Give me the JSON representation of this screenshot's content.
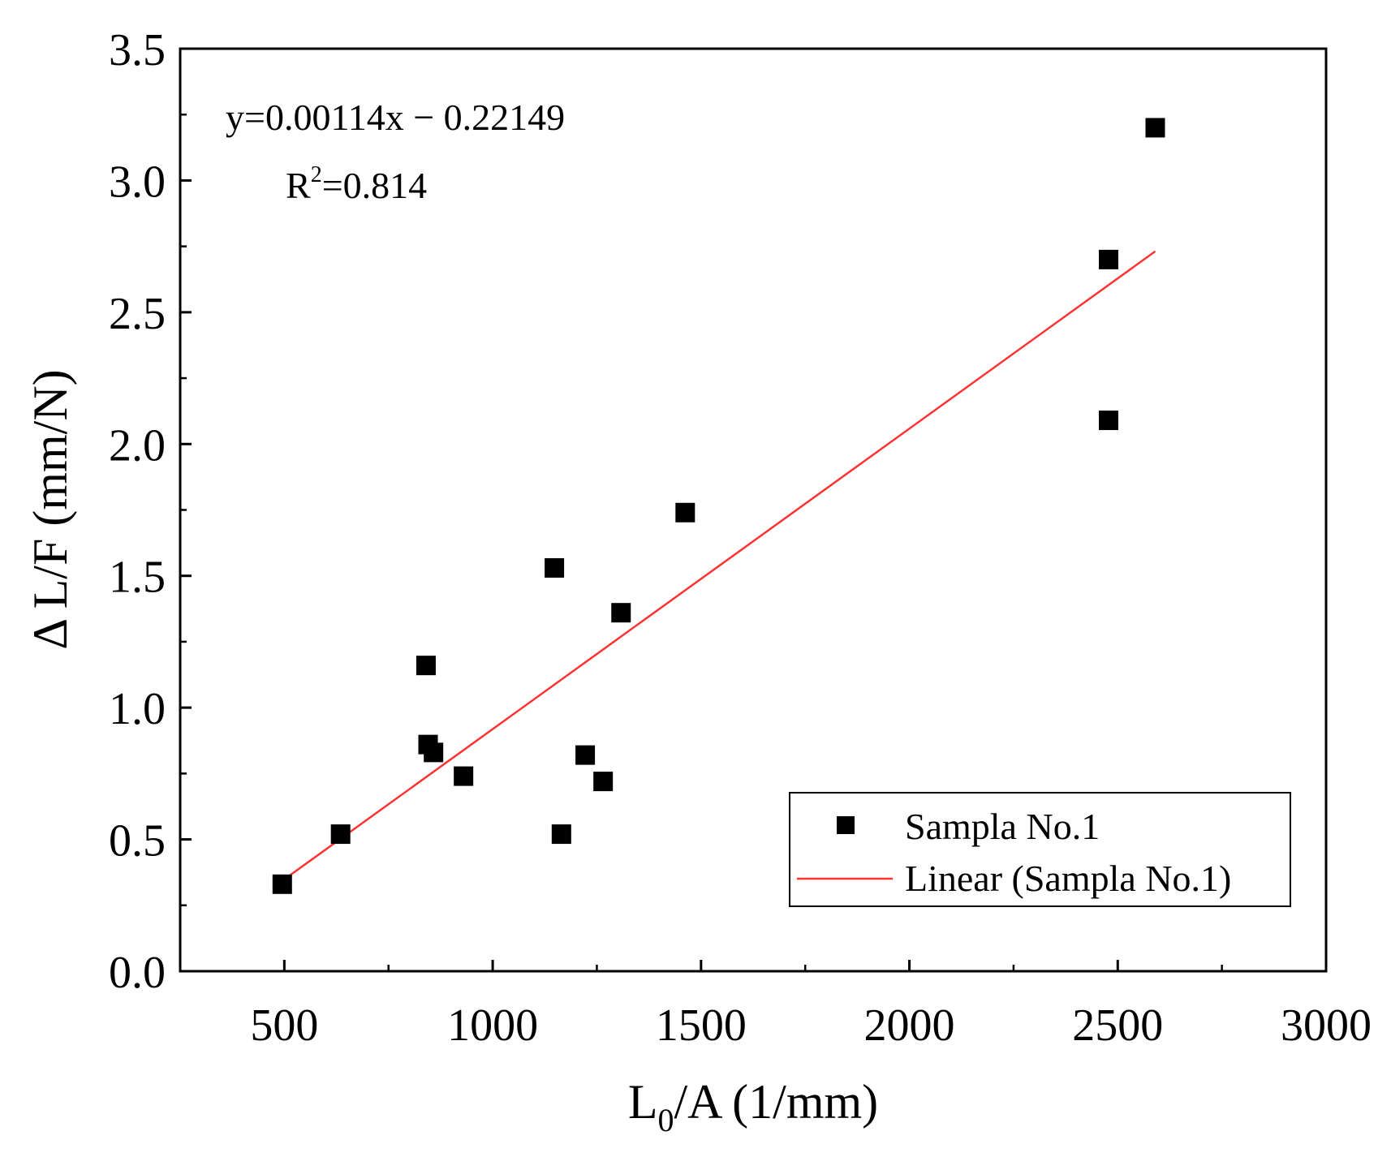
{
  "chart_data": {
    "type": "scatter",
    "title": "",
    "xlabel": {
      "main": "L",
      "sub": "0",
      "rest": "/A (1/mm)"
    },
    "ylabel": "Δ L/F (mm/N)",
    "xlim": [
      250,
      3000
    ],
    "ylim": [
      0,
      3.5
    ],
    "x_ticks": [
      500,
      1000,
      1500,
      2000,
      2500,
      3000
    ],
    "x_tick_labels": [
      "500",
      "1000",
      "1500",
      "2000",
      "2500",
      "3000"
    ],
    "x_minor_ticks": [
      750,
      1250,
      1750,
      2250,
      2750
    ],
    "y_ticks": [
      0,
      0.5,
      1.0,
      1.5,
      2.0,
      2.5,
      3.0,
      3.5
    ],
    "y_tick_labels": [
      "0.0",
      "0.5",
      "1.0",
      "1.5",
      "2.0",
      "2.5",
      "3.0",
      "3.5"
    ],
    "y_minor_ticks": [
      0.25,
      0.75,
      1.25,
      1.75,
      2.25,
      2.75,
      3.25
    ],
    "series": [
      {
        "name": "Sampla No.1",
        "kind": "scatter",
        "marker": "square",
        "color": "#000000",
        "points": [
          [
            495,
            0.33
          ],
          [
            635,
            0.52
          ],
          [
            840,
            1.16
          ],
          [
            845,
            0.86
          ],
          [
            858,
            0.83
          ],
          [
            930,
            0.74
          ],
          [
            1148,
            1.53
          ],
          [
            1165,
            0.52
          ],
          [
            1222,
            0.82
          ],
          [
            1265,
            0.72
          ],
          [
            1308,
            1.36
          ],
          [
            1462,
            1.74
          ],
          [
            2478,
            2.7
          ],
          [
            2478,
            2.09
          ],
          [
            2590,
            3.2
          ]
        ]
      },
      {
        "name": "Linear (Sampla No.1)",
        "kind": "line",
        "color": "#ff3333",
        "slope": 0.00114,
        "intercept": -0.22149,
        "x_range": [
          495,
          2590
        ]
      }
    ],
    "annotations": {
      "equation": "y=0.00114x − 0.22149",
      "r2_prefix": "R",
      "r2_sup": "2",
      "r2_value": "=0.814"
    },
    "legend": {
      "position": "bottom-right",
      "entries": [
        "Sampla No.1",
        "Linear (Sampla No.1)"
      ]
    }
  }
}
